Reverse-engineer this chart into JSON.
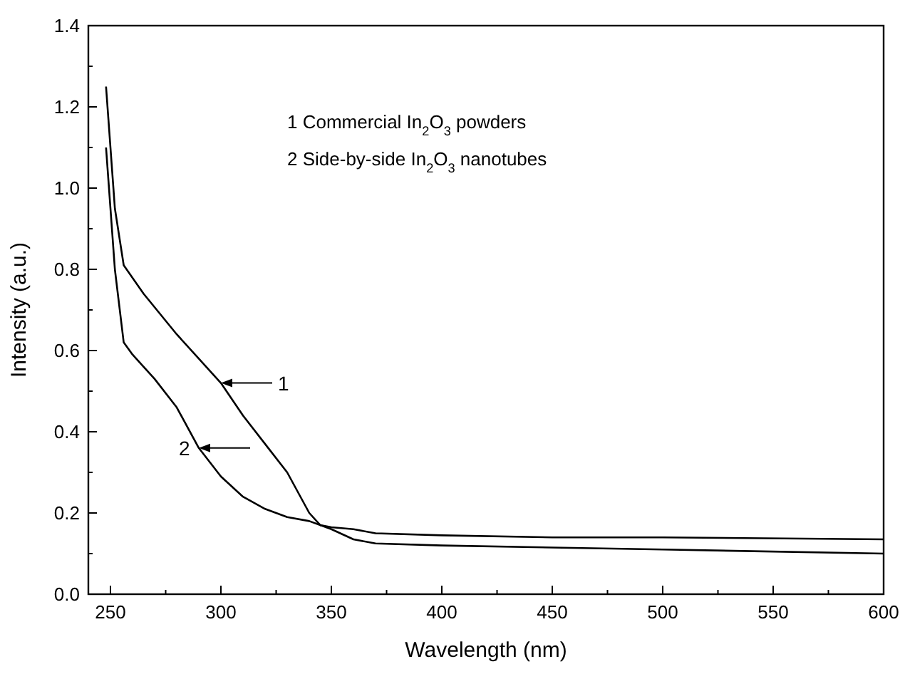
{
  "chart_data": {
    "type": "line",
    "xlabel": "Wavelength (nm)",
    "ylabel": "Intensity (a.u.)",
    "xlim": [
      240,
      600
    ],
    "ylim": [
      0,
      1.4
    ],
    "xticks": [
      250,
      {
        "value": 275,
        "label": null
      },
      300,
      {
        "value": 325,
        "label": null
      },
      350,
      {
        "value": 375,
        "label": null
      },
      400,
      {
        "value": 425,
        "label": null
      },
      450,
      {
        "value": 475,
        "label": null
      },
      500,
      {
        "value": 525,
        "label": null
      },
      550,
      {
        "value": 575,
        "label": null
      },
      600
    ],
    "yticks": [
      {
        "value": 0,
        "label": "0.0"
      },
      {
        "value": 0.1,
        "label": null
      },
      {
        "value": 0.2,
        "label": "0.2"
      },
      {
        "value": 0.3,
        "label": null
      },
      {
        "value": 0.4,
        "label": "0.4"
      },
      {
        "value": 0.5,
        "label": null
      },
      {
        "value": 0.6,
        "label": "0.6"
      },
      {
        "value": 0.7,
        "label": null
      },
      {
        "value": 0.8,
        "label": "0.8"
      },
      {
        "value": 0.9,
        "label": null
      },
      {
        "value": 1.0,
        "label": "1.0"
      },
      {
        "value": 1.1,
        "label": null
      },
      {
        "value": 1.2,
        "label": "1.2"
      },
      {
        "value": 1.3,
        "label": null
      },
      {
        "value": 1.4,
        "label": "1.4"
      }
    ],
    "grid": false,
    "line_style": "solid",
    "series": [
      {
        "color": "#000000",
        "x": [
          248,
          252,
          256,
          265,
          280,
          290,
          300,
          310,
          320,
          330,
          335,
          340,
          345,
          350,
          360,
          370,
          400,
          450,
          500,
          600
        ],
        "values": [
          1.25,
          0.95,
          0.81,
          0.74,
          0.64,
          0.58,
          0.52,
          0.44,
          0.37,
          0.3,
          0.25,
          0.2,
          0.17,
          0.165,
          0.16,
          0.15,
          0.145,
          0.14,
          0.14,
          0.135
        ]
      },
      {
        "color": "#000000",
        "x": [
          248,
          252,
          256,
          260,
          270,
          280,
          290,
          300,
          310,
          320,
          330,
          340,
          350,
          360,
          370,
          400,
          450,
          500,
          600
        ],
        "values": [
          1.1,
          0.8,
          0.62,
          0.59,
          0.53,
          0.46,
          0.36,
          0.29,
          0.24,
          0.21,
          0.19,
          0.18,
          0.16,
          0.135,
          0.125,
          0.12,
          0.115,
          0.11,
          0.1
        ]
      }
    ],
    "annotations": [
      "1 Commercial In$_{2}$O$_{3}$ powders",
      "2 Side-by-side In$_{2}$O$_{3}$ nanotubes",
      {
        "text": "1",
        "x": 300,
        "y": 0.52
      },
      {
        "text": "2",
        "x": 290,
        "y": 0.36
      }
    ]
  }
}
